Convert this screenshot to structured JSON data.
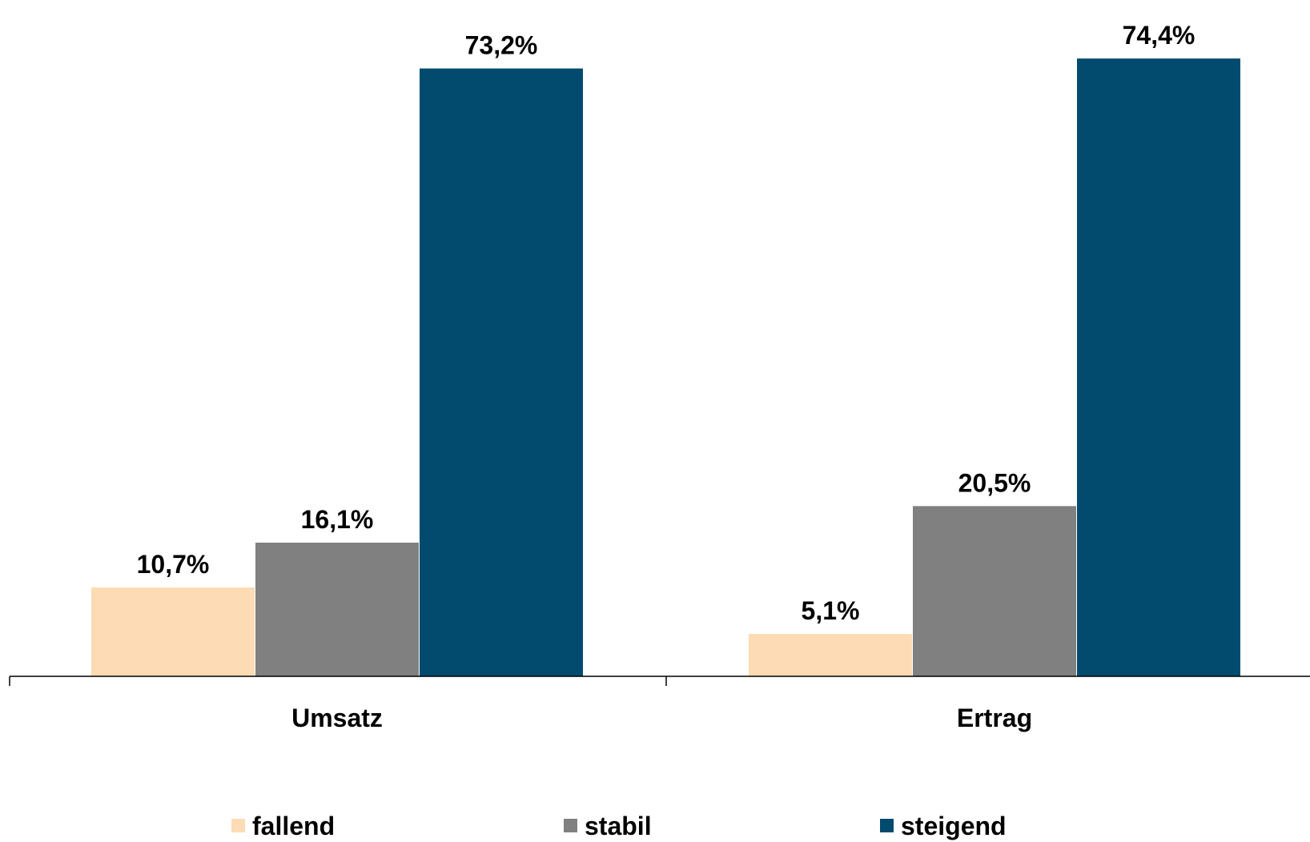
{
  "chart_data": {
    "type": "bar",
    "categories": [
      "Umsatz",
      "Ertrag"
    ],
    "series": [
      {
        "name": "fallend",
        "values": [
          10.7,
          5.1
        ],
        "labels": [
          "10,7%",
          "5,1%"
        ],
        "color": "#FDDBB4"
      },
      {
        "name": "stabil",
        "values": [
          16.1,
          20.5
        ],
        "labels": [
          "16,1%",
          "20,5%"
        ],
        "color": "#808080"
      },
      {
        "name": "steigend",
        "values": [
          73.2,
          74.4
        ],
        "labels": [
          "73,2%",
          "74,4%"
        ],
        "color": "#034B6E"
      }
    ],
    "unit": "%",
    "ylim": [
      0,
      80
    ],
    "grid": false,
    "legend_position": "bottom",
    "title": "",
    "xlabel": "",
    "ylabel": ""
  }
}
